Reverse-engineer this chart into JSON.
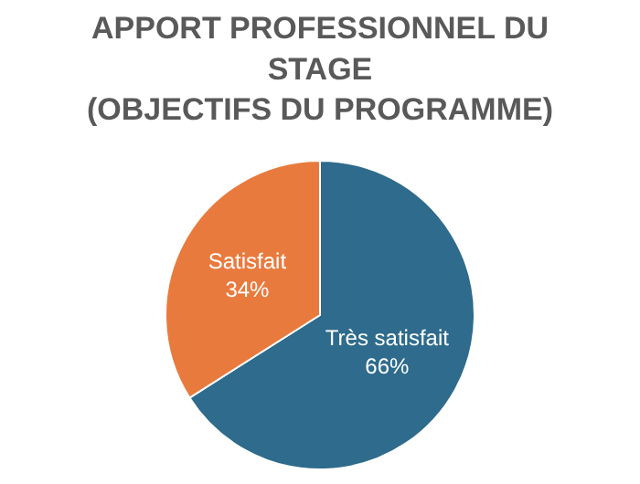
{
  "chart_data": {
    "type": "pie",
    "title": "APPORT PROFESSIONNEL DU\nSTAGE\n(OBJECTIFS DU PROGRAMME)",
    "categories": [
      "Très satisfait",
      "Satisfait"
    ],
    "values": [
      66,
      34
    ],
    "value_labels": [
      "66%",
      "34%"
    ],
    "colors": [
      "#2e6b8c",
      "#e97a3e"
    ],
    "legend": false
  }
}
